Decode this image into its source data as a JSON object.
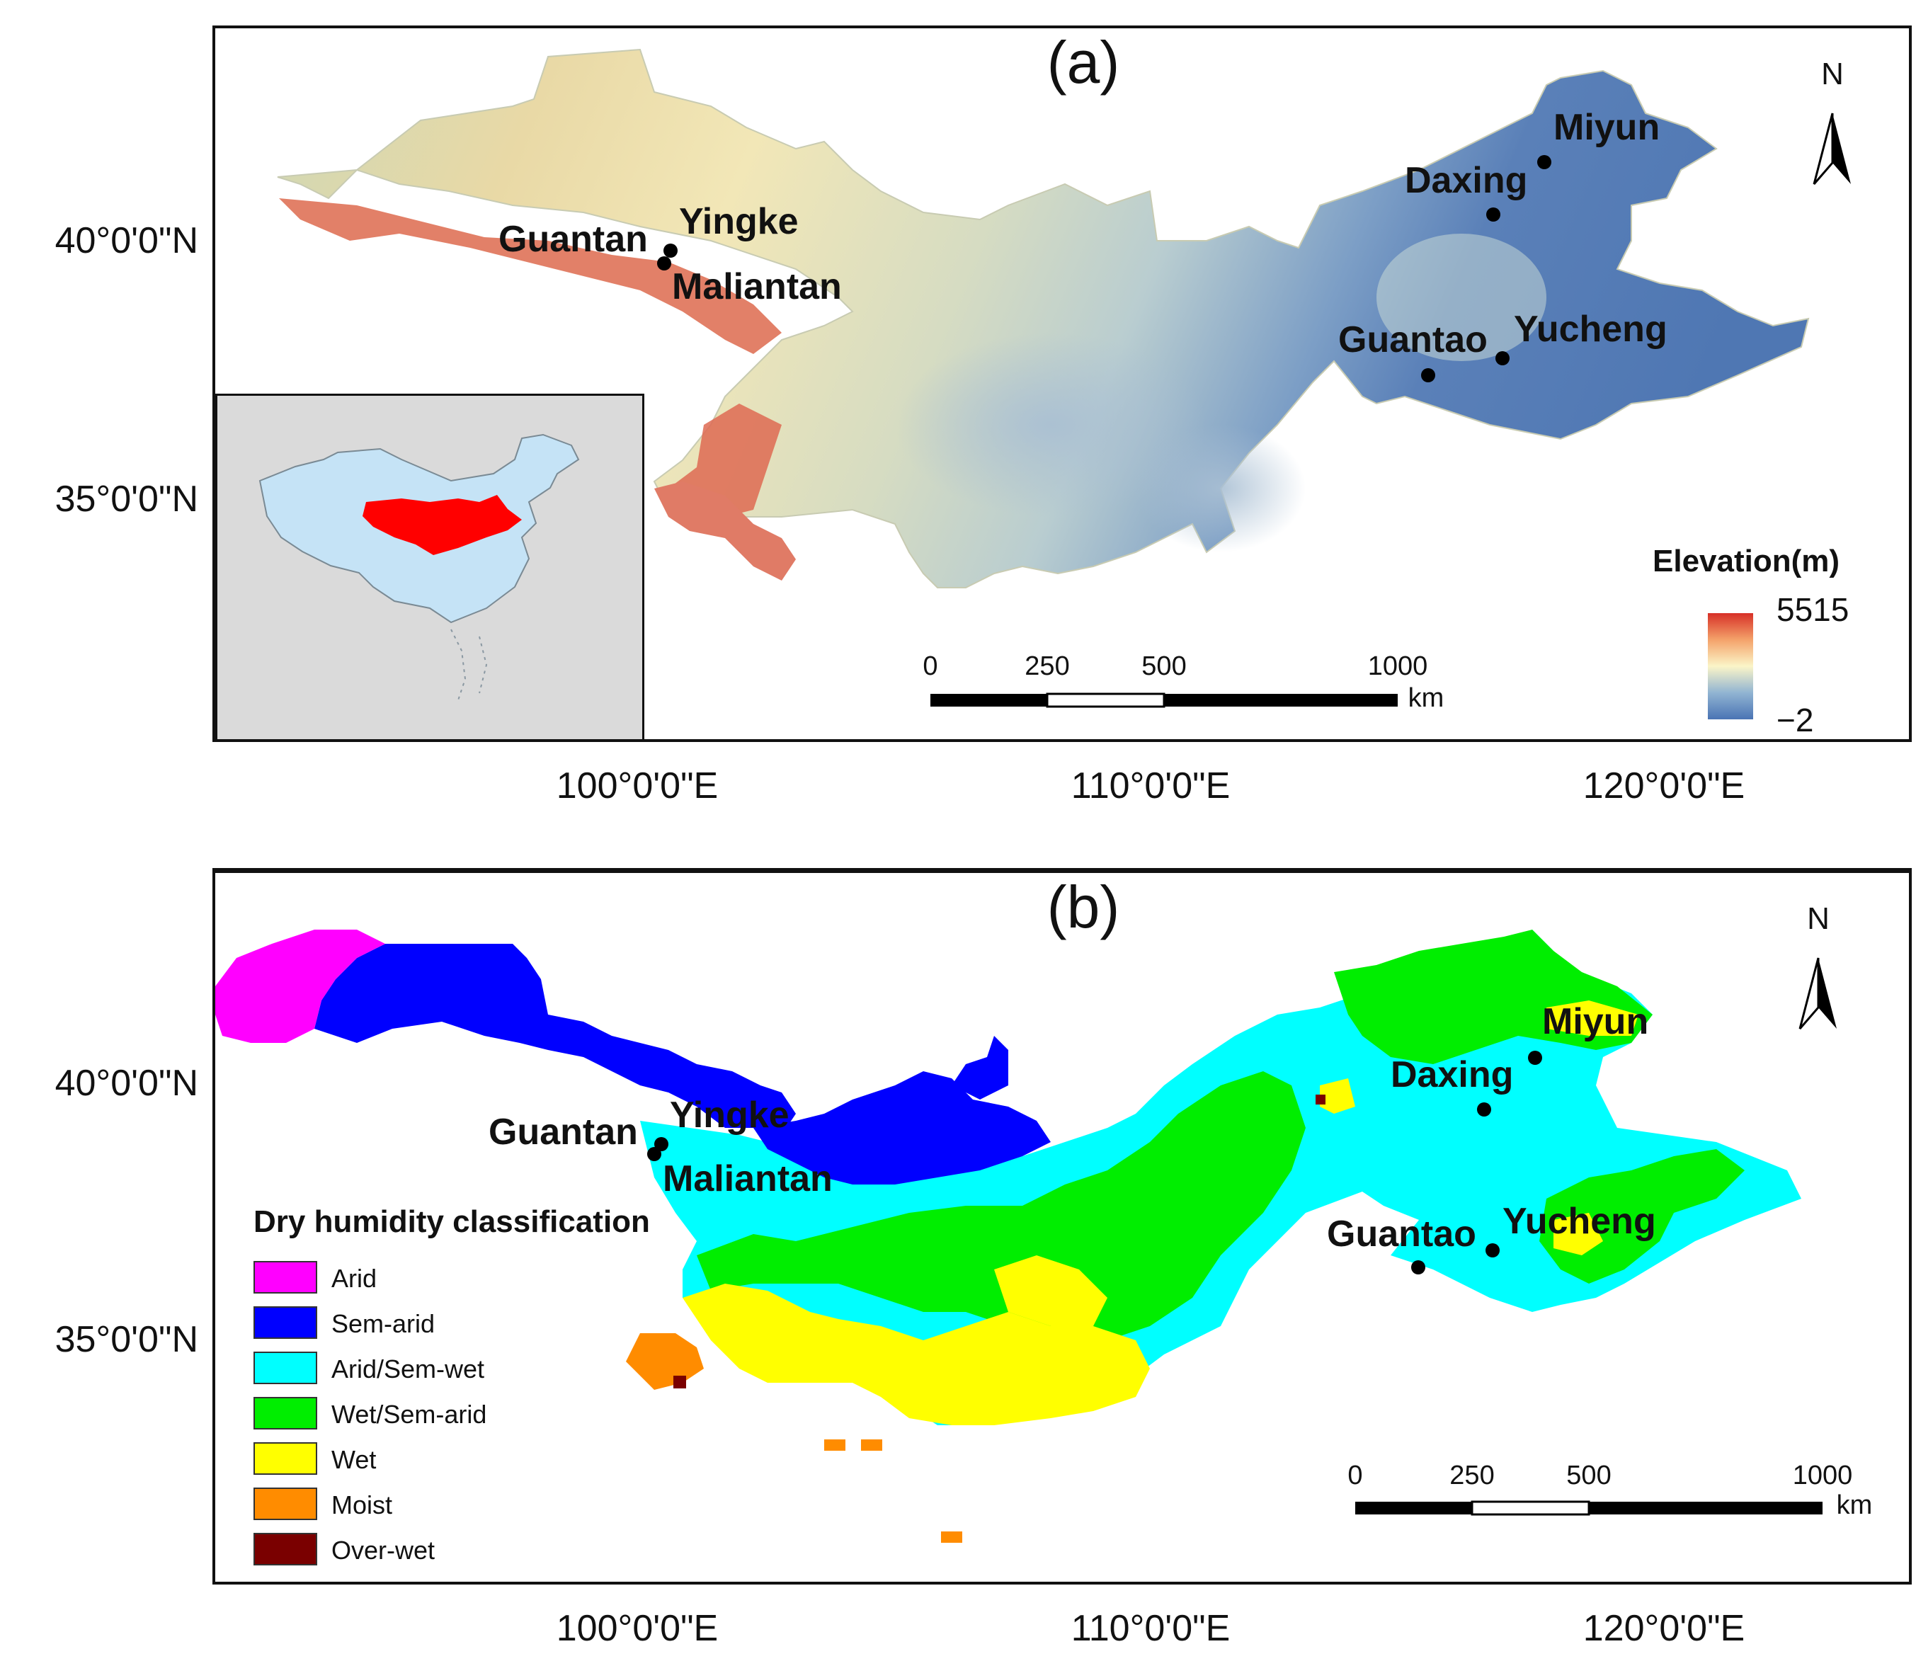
{
  "panel_a": {
    "title": "(a)",
    "lat_labels": [
      "40°0'0\"N",
      "35°0'0\"N"
    ],
    "lon_labels": [
      "100°0'0\"E",
      "110°0'0\"E",
      "120°0'0\"E"
    ],
    "stations": [
      "Miyun",
      "Daxing",
      "Yingke",
      "Guantan",
      "Maliantan",
      "Guantao",
      "Yucheng"
    ],
    "north": "N",
    "scale": {
      "ticks": [
        "0",
        "250",
        "500",
        "1000"
      ],
      "unit": "km"
    },
    "legend": {
      "title": "Elevation(m)",
      "max": "5515",
      "min": "−2",
      "colors": [
        "#d73027",
        "#f4a26a",
        "#fbf5c8",
        "#91b4d2",
        "#4a74b4"
      ]
    },
    "inset": {
      "background": "#dadada",
      "country_fill": "#c5e3f6",
      "region_fill": "#ff0000"
    }
  },
  "panel_b": {
    "title": "(b)",
    "lat_labels": [
      "40°0'0\"N",
      "35°0'0\"N"
    ],
    "lon_labels": [
      "100°0'0\"E",
      "110°0'0\"E",
      "120°0'0\"E"
    ],
    "stations": [
      "Miyun",
      "Daxing",
      "Yingke",
      "Guantan",
      "Maliantan",
      "Guantao",
      "Yucheng"
    ],
    "north": "N",
    "scale": {
      "ticks": [
        "0",
        "250",
        "500",
        "1000"
      ],
      "unit": "km"
    },
    "legend": {
      "title": "Dry humidity classification",
      "items": [
        {
          "label": "Arid",
          "color": "#ff00ff"
        },
        {
          "label": "Sem-arid",
          "color": "#0000ff"
        },
        {
          "label": "Arid/Sem-wet",
          "color": "#00ffff"
        },
        {
          "label": "Wet/Sem-arid",
          "color": "#00ee00"
        },
        {
          "label": "Wet",
          "color": "#ffff00"
        },
        {
          "label": "Moist",
          "color": "#ff8c00"
        },
        {
          "label": "Over-wet",
          "color": "#7a0000"
        }
      ]
    }
  }
}
